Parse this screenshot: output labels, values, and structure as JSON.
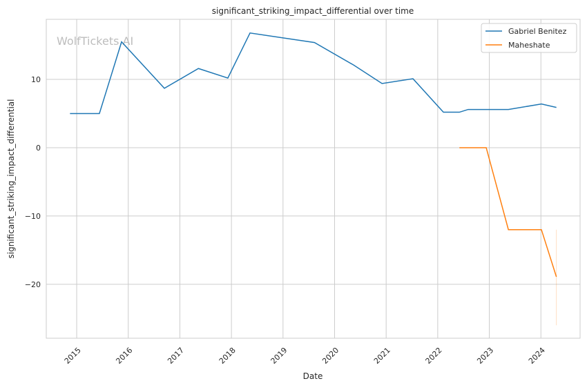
{
  "chart_data": {
    "type": "line",
    "title": "significant_striking_impact_differential over time",
    "xlabel": "Date",
    "ylabel": "significant_striking_impact_differential",
    "xlim": [
      2014.41,
      2024.76
    ],
    "ylim": [
      -27.9,
      18.8
    ],
    "xticks": [
      2015,
      2016,
      2017,
      2018,
      2019,
      2020,
      2021,
      2022,
      2023,
      2024
    ],
    "xtick_labels": [
      "2015",
      "2016",
      "2017",
      "2018",
      "2019",
      "2020",
      "2021",
      "2022",
      "2023",
      "2024"
    ],
    "yticks": [
      -20,
      -10,
      0,
      10
    ],
    "ytick_labels": [
      "−20",
      "−10",
      "0",
      "10"
    ],
    "grid": true,
    "legend_position": "top-right",
    "watermark": "WolfTickets.AI",
    "series": [
      {
        "name": "Gabriel Benitez",
        "color": "#1f77b4",
        "x": [
          2014.87,
          2015.44,
          2015.87,
          2016.7,
          2017.36,
          2017.93,
          2018.36,
          2019.61,
          2020.37,
          2020.92,
          2021.52,
          2022.11,
          2022.42,
          2022.59,
          2023.37,
          2024.01,
          2024.3
        ],
        "y": [
          5.0,
          5.0,
          15.5,
          8.7,
          11.6,
          10.2,
          16.8,
          15.4,
          12.1,
          9.4,
          10.1,
          5.2,
          5.2,
          5.6,
          5.6,
          6.4,
          5.9
        ]
      },
      {
        "name": "Maheshate",
        "color": "#ff7f0e",
        "x": [
          2022.42,
          2022.94,
          2023.37,
          2024.01,
          2024.3
        ],
        "y": [
          0,
          0,
          -12,
          -12,
          -18.9
        ],
        "band": {
          "x": 2024.3,
          "low": -26,
          "high": -12
        }
      }
    ]
  }
}
